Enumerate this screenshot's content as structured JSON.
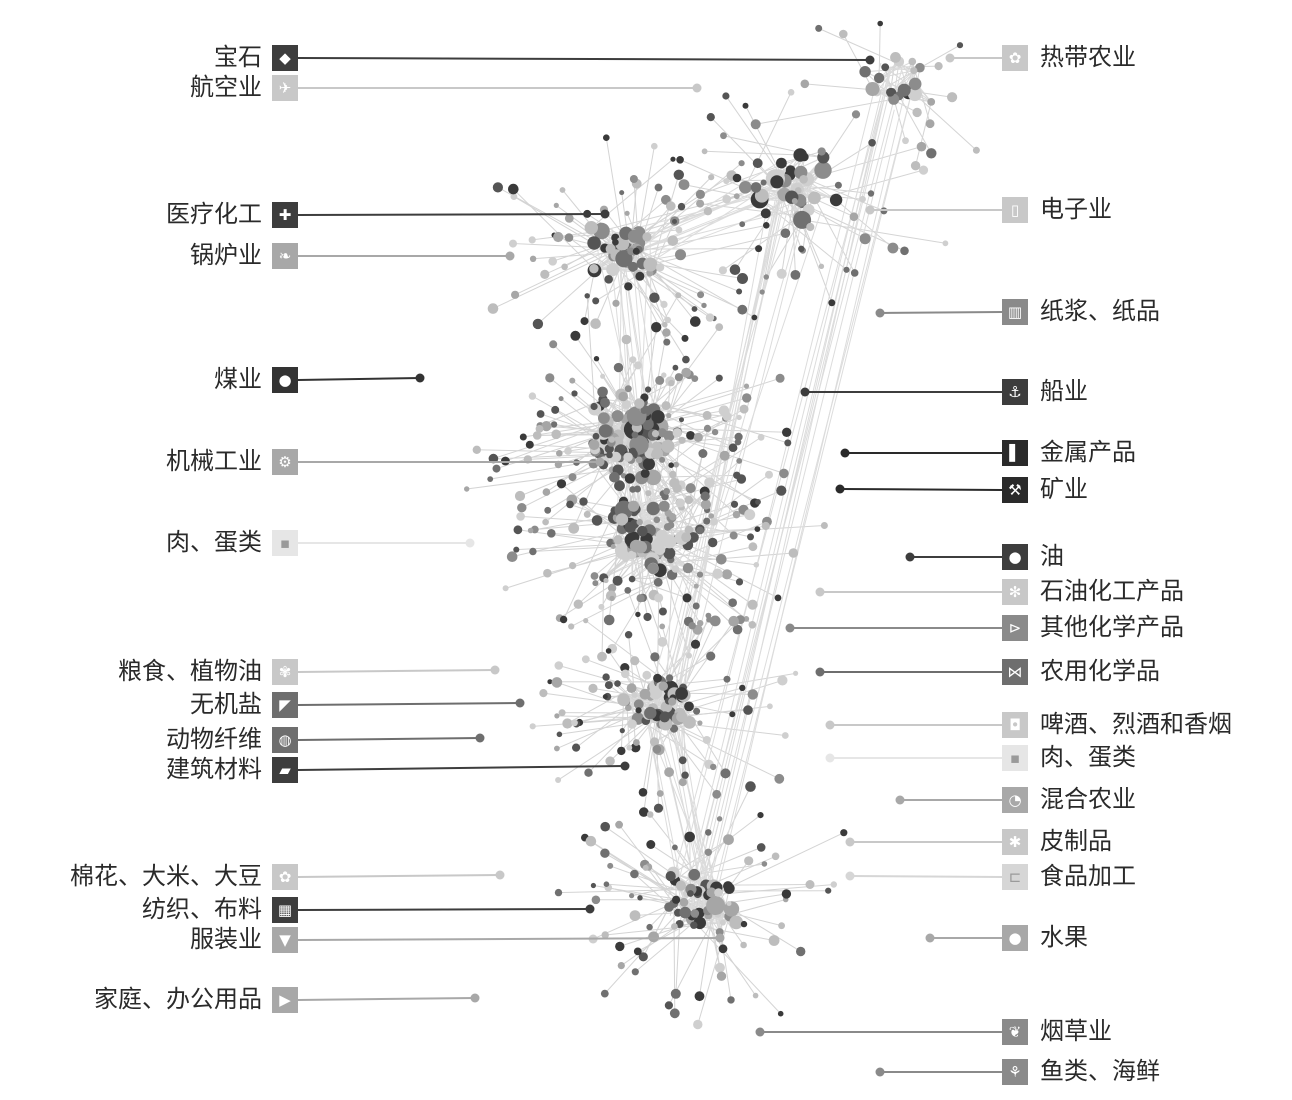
{
  "diagram": {
    "left_categories": [
      {
        "id": "gem",
        "label": "宝石",
        "icon": "diamond-icon",
        "glyph": "◆",
        "color": "#3d3d3d"
      },
      {
        "id": "aviation",
        "label": "航空业",
        "icon": "airplane-icon",
        "glyph": "✈",
        "color": "#c8c8c8"
      },
      {
        "id": "medical-chem",
        "label": "医疗化工",
        "icon": "cross-icon",
        "glyph": "✚",
        "color": "#3d3d3d"
      },
      {
        "id": "boiler",
        "label": "锅炉业",
        "icon": "leaf-icon",
        "glyph": "❧",
        "color": "#a8a8a8"
      },
      {
        "id": "coal",
        "label": "煤业",
        "icon": "coal-icon",
        "glyph": "●",
        "color": "#333333"
      },
      {
        "id": "machinery",
        "label": "机械工业",
        "icon": "gears-icon",
        "glyph": "⚙",
        "color": "#a8a8a8"
      },
      {
        "id": "meat-egg-left",
        "label": "肉、蛋类",
        "icon": "meat-icon",
        "glyph": "▪",
        "color": "#e6e6e6"
      },
      {
        "id": "grain-oil",
        "label": "粮食、植物油",
        "icon": "wheat-icon",
        "glyph": "✾",
        "color": "#c8c8c8"
      },
      {
        "id": "inorganic-salt",
        "label": "无机盐",
        "icon": "salt-icon",
        "glyph": "◤",
        "color": "#6e6e6e"
      },
      {
        "id": "animal-fiber",
        "label": "动物纤维",
        "icon": "yarn-ball-icon",
        "glyph": "◍",
        "color": "#6e6e6e"
      },
      {
        "id": "building",
        "label": "建筑材料",
        "icon": "brick-icon",
        "glyph": "▰",
        "color": "#3d3d3d"
      },
      {
        "id": "cotton",
        "label": "棉花、大米、大豆",
        "icon": "cotton-icon",
        "glyph": "✿",
        "color": "#c8c8c8"
      },
      {
        "id": "textile",
        "label": "纺织、布料",
        "icon": "fabric-grid-icon",
        "glyph": "▦",
        "color": "#3d3d3d"
      },
      {
        "id": "clothing",
        "label": "服装业",
        "icon": "shirt-icon",
        "glyph": "▼",
        "color": "#a8a8a8"
      },
      {
        "id": "home-office",
        "label": "家庭、办公用品",
        "icon": "chair-icon",
        "glyph": "▶",
        "color": "#a8a8a8"
      }
    ],
    "right_categories": [
      {
        "id": "tropical",
        "label": "热带农业",
        "icon": "flower-icon",
        "glyph": "✿",
        "color": "#c8c8c8"
      },
      {
        "id": "electronics",
        "label": "电子业",
        "icon": "chip-icon",
        "glyph": "▯",
        "color": "#c8c8c8"
      },
      {
        "id": "paper",
        "label": "纸浆、纸品",
        "icon": "paper-roll-icon",
        "glyph": "▥",
        "color": "#8a8a8a"
      },
      {
        "id": "ship",
        "label": "船业",
        "icon": "anchor-icon",
        "glyph": "⚓",
        "color": "#3d3d3d"
      },
      {
        "id": "metal",
        "label": "金属产品",
        "icon": "metal-bar-icon",
        "glyph": "▌",
        "color": "#2a2a2a"
      },
      {
        "id": "mining",
        "label": "矿业",
        "icon": "pickaxe-icon",
        "glyph": "⚒",
        "color": "#2a2a2a"
      },
      {
        "id": "oil",
        "label": "油",
        "icon": "oil-drop-icon",
        "glyph": "●",
        "color": "#3d3d3d"
      },
      {
        "id": "petrochem",
        "label": "石油化工产品",
        "icon": "recycle-icon",
        "glyph": "✻",
        "color": "#c8c8c8"
      },
      {
        "id": "other-chem",
        "label": "其他化学产品",
        "icon": "flask-icon",
        "glyph": "⊳",
        "color": "#8a8a8a"
      },
      {
        "id": "agro-chem",
        "label": "农用化学品",
        "icon": "fertilizer-icon",
        "glyph": "⋈",
        "color": "#6e6e6e"
      },
      {
        "id": "beverage",
        "label": "啤酒、烈酒和香烟",
        "icon": "beer-mug-icon",
        "glyph": "◘",
        "color": "#c8c8c8"
      },
      {
        "id": "meat-egg-right",
        "label": "肉、蛋类",
        "icon": "meat-icon",
        "glyph": "▪",
        "color": "#e6e6e6"
      },
      {
        "id": "mixed-agri",
        "label": "混合农业",
        "icon": "pie-icon",
        "glyph": "◔",
        "color": "#a8a8a8"
      },
      {
        "id": "leather",
        "label": "皮制品",
        "icon": "hide-icon",
        "glyph": "✱",
        "color": "#c8c8c8"
      },
      {
        "id": "food-processing",
        "label": "食品加工",
        "icon": "fish-tin-icon",
        "glyph": "⊏",
        "color": "#d6d6d6"
      },
      {
        "id": "fruit",
        "label": "水果",
        "icon": "apple-icon",
        "glyph": "●",
        "color": "#a8a8a8"
      },
      {
        "id": "tobacco",
        "label": "烟草业",
        "icon": "tobacco-leaf-icon",
        "glyph": "❦",
        "color": "#8a8a8a"
      },
      {
        "id": "fish-seafood",
        "label": "鱼类、海鲜",
        "icon": "fish-icon",
        "glyph": "⚘",
        "color": "#8a8a8a"
      }
    ]
  }
}
